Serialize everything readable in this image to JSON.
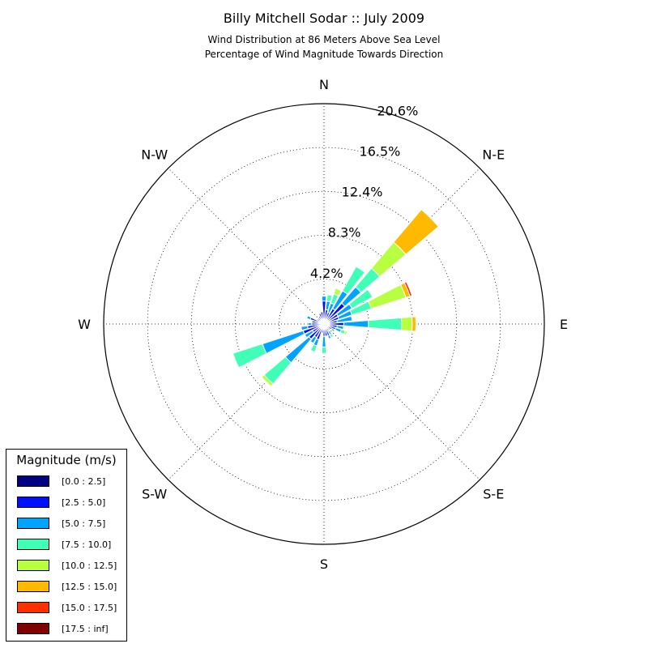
{
  "chart_data": {
    "type": "windrose",
    "title": "Billy Mitchell Sodar :: July 2009",
    "subtitle_lines": [
      "Wind Distribution at 86 Meters Above Sea Level",
      "Percentage of Wind Magnitude Towards Direction"
    ],
    "direction_labels": [
      "N",
      "N-E",
      "E",
      "S-E",
      "S",
      "S-W",
      "W",
      "N-W"
    ],
    "radial_tick_labels": [
      "4.2%",
      "8.3%",
      "12.4%",
      "16.5%",
      "20.6%"
    ],
    "radial_ticks": [
      4.2,
      8.3,
      12.4,
      16.5,
      20.6
    ],
    "rmax": 20.6,
    "grid": true,
    "bins": [
      {
        "label": "[0.0 : 2.5]",
        "color": "#000080"
      },
      {
        "label": "[2.5 : 5.0]",
        "color": "#0010ff"
      },
      {
        "label": "[5.0 : 7.5]",
        "color": "#00a4ff"
      },
      {
        "label": "[7.5 : 10.0]",
        "color": "#40ffb7"
      },
      {
        "label": "[10.0 : 12.5]",
        "color": "#b7ff40"
      },
      {
        "label": "[12.5 : 15.0]",
        "color": "#ffb900"
      },
      {
        "label": "[15.0 : 17.5]",
        "color": "#ff3000"
      },
      {
        "label": "[17.5 : inf]",
        "color": "#800000"
      }
    ],
    "sectors": [
      {
        "direction_deg": 0,
        "values": [
          0.25,
          1.9,
          0.45,
          0.0,
          0.0,
          0.0,
          0.0,
          0.0
        ]
      },
      {
        "direction_deg": 11.25,
        "values": [
          0.25,
          1.1,
          0.8,
          0.6,
          0.0,
          0.0,
          0.0,
          0.0
        ]
      },
      {
        "direction_deg": 22.5,
        "values": [
          0.25,
          0.9,
          0.9,
          0.9,
          0.55,
          0.0,
          0.0,
          0.0
        ]
      },
      {
        "direction_deg": 33.75,
        "values": [
          0.25,
          1.4,
          1.9,
          2.6,
          0.0,
          0.0,
          0.0,
          0.0
        ]
      },
      {
        "direction_deg": 45,
        "values": [
          0.25,
          2.3,
          2.0,
          2.3,
          3.2,
          4.0,
          0.0,
          0.0
        ]
      },
      {
        "direction_deg": 56.25,
        "values": [
          0.25,
          1.25,
          1.5,
          2.2,
          0.0,
          0.0,
          0.0,
          0.0
        ]
      },
      {
        "direction_deg": 67.5,
        "values": [
          0.25,
          1.2,
          1.3,
          1.9,
          3.4,
          0.4,
          0.2,
          0.0
        ]
      },
      {
        "direction_deg": 78.75,
        "values": [
          0.25,
          1.0,
          1.4,
          0.0,
          0.0,
          0.0,
          0.0,
          0.0
        ]
      },
      {
        "direction_deg": 90,
        "values": [
          0.25,
          1.6,
          2.3,
          3.1,
          1.0,
          0.35,
          0.0,
          0.0
        ]
      },
      {
        "direction_deg": 101.25,
        "values": [
          0.25,
          1.0,
          0.6,
          0.0,
          0.0,
          0.0,
          0.0,
          0.0
        ]
      },
      {
        "direction_deg": 112.5,
        "values": [
          0.25,
          0.9,
          0.55,
          0.4,
          0.2,
          0.0,
          0.0,
          0.0
        ]
      },
      {
        "direction_deg": 123.75,
        "values": [
          0.25,
          0.6,
          0.3,
          0.0,
          0.0,
          0.0,
          0.0,
          0.0
        ]
      },
      {
        "direction_deg": 135,
        "values": [
          0.25,
          0.35,
          0.0,
          0.0,
          0.0,
          0.0,
          0.0,
          0.0
        ]
      },
      {
        "direction_deg": 146.25,
        "values": [
          0.25,
          0.5,
          0.4,
          0.3,
          0.0,
          0.0,
          0.0,
          0.0
        ]
      },
      {
        "direction_deg": 157.5,
        "values": [
          0.25,
          0.9,
          0.3,
          0.0,
          0.0,
          0.0,
          0.0,
          0.0
        ]
      },
      {
        "direction_deg": 168.75,
        "values": [
          0.25,
          0.9,
          0.0,
          0.0,
          0.0,
          0.0,
          0.0,
          0.0
        ]
      },
      {
        "direction_deg": 180,
        "values": [
          0.25,
          0.9,
          1.0,
          0.6,
          0.0,
          0.0,
          0.0,
          0.0
        ]
      },
      {
        "direction_deg": 191.25,
        "values": [
          0.25,
          0.6,
          0.0,
          0.0,
          0.0,
          0.0,
          0.0,
          0.0
        ]
      },
      {
        "direction_deg": 202.5,
        "values": [
          0.25,
          1.3,
          0.6,
          0.6,
          0.0,
          0.0,
          0.0,
          0.0
        ]
      },
      {
        "direction_deg": 213.75,
        "values": [
          0.25,
          1.2,
          0.6,
          0.0,
          0.0,
          0.0,
          0.0,
          0.0
        ]
      },
      {
        "direction_deg": 225,
        "values": [
          0.25,
          1.6,
          2.9,
          2.6,
          0.3,
          0.0,
          0.0,
          0.0
        ]
      },
      {
        "direction_deg": 236.25,
        "values": [
          0.25,
          1.0,
          0.8,
          0.0,
          0.0,
          0.0,
          0.0,
          0.0
        ]
      },
      {
        "direction_deg": 247.5,
        "values": [
          0.25,
          1.8,
          4.0,
          2.9,
          0.0,
          0.0,
          0.0,
          0.0
        ]
      },
      {
        "direction_deg": 258.75,
        "values": [
          0.25,
          1.3,
          0.6,
          0.0,
          0.0,
          0.0,
          0.0,
          0.0
        ]
      },
      {
        "direction_deg": 270,
        "values": [
          0.25,
          0.9,
          0.35,
          0.0,
          0.0,
          0.0,
          0.0,
          0.0
        ]
      },
      {
        "direction_deg": 281.25,
        "values": [
          0.25,
          0.9,
          0.0,
          0.0,
          0.0,
          0.0,
          0.0,
          0.0
        ]
      },
      {
        "direction_deg": 292.5,
        "values": [
          0.25,
          1.1,
          0.35,
          0.0,
          0.0,
          0.0,
          0.0,
          0.0
        ]
      },
      {
        "direction_deg": 303.75,
        "values": [
          0.25,
          0.5,
          0.0,
          0.0,
          0.0,
          0.0,
          0.0,
          0.0
        ]
      },
      {
        "direction_deg": 315,
        "values": [
          0.25,
          0.5,
          0.0,
          0.0,
          0.0,
          0.0,
          0.0,
          0.0
        ]
      },
      {
        "direction_deg": 326.25,
        "values": [
          0.25,
          0.6,
          0.0,
          0.0,
          0.0,
          0.0,
          0.0,
          0.0
        ]
      },
      {
        "direction_deg": 337.5,
        "values": [
          0.25,
          0.8,
          0.0,
          0.0,
          0.0,
          0.0,
          0.0,
          0.0
        ]
      },
      {
        "direction_deg": 348.75,
        "values": [
          0.25,
          0.9,
          0.0,
          0.0,
          0.0,
          0.0,
          0.0,
          0.0
        ]
      }
    ]
  },
  "legend": {
    "title": "Magnitude (m/s)",
    "items": [
      {
        "label": "[0.0 : 2.5]",
        "color": "#000080"
      },
      {
        "label": "[2.5 : 5.0]",
        "color": "#0010ff"
      },
      {
        "label": "[5.0 : 7.5]",
        "color": "#00a4ff"
      },
      {
        "label": "[7.5 : 10.0]",
        "color": "#40ffb7"
      },
      {
        "label": "[10.0 : 12.5]",
        "color": "#b7ff40"
      },
      {
        "label": "[12.5 : 15.0]",
        "color": "#ffb900"
      },
      {
        "label": "[15.0 : 17.5]",
        "color": "#ff3000"
      },
      {
        "label": "[17.5 : inf]",
        "color": "#800000"
      }
    ]
  }
}
